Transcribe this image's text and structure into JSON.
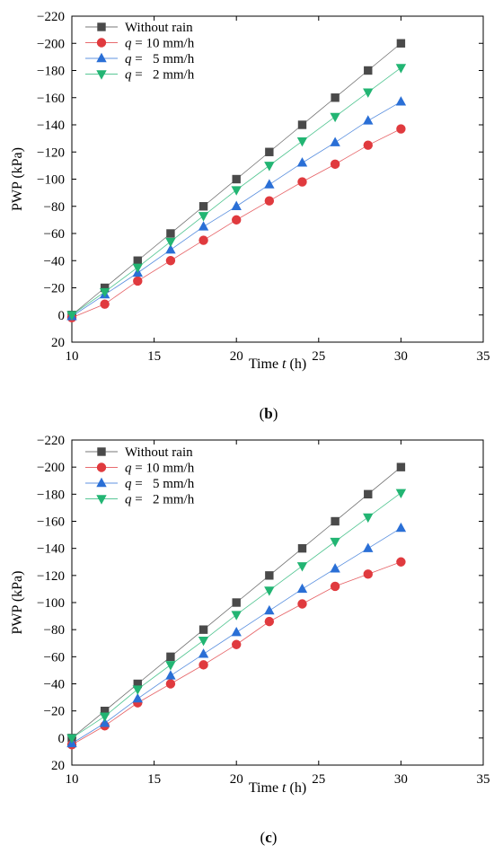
{
  "chart_data": [
    {
      "type": "line",
      "panel_label": "b",
      "xlabel_main": "Time ",
      "xlabel_var": "t",
      "xlabel_unit": " (h)",
      "ylabel": "PWP (kPa)",
      "xlim": [
        10,
        35
      ],
      "ylim": [
        20,
        -220
      ],
      "y_inverted": true,
      "x_ticks": [
        10,
        15,
        20,
        25,
        30,
        35
      ],
      "x_tick_labels": [
        "10",
        "15",
        "20",
        "25",
        "30",
        "35"
      ],
      "y_ticks": [
        -220,
        -200,
        -180,
        -160,
        -140,
        -120,
        -100,
        -80,
        -60,
        -40,
        -20,
        0,
        20
      ],
      "y_tick_labels": [
        "−220",
        "−200",
        "−180",
        "−160",
        "−140",
        "−120",
        "−100",
        "−80",
        "−60",
        "−40",
        "−20",
        "0",
        "20"
      ],
      "grid": false,
      "legend_position": "top-left",
      "x": [
        10,
        12,
        14,
        16,
        18,
        20,
        22,
        24,
        26,
        28,
        30
      ],
      "series": [
        {
          "name": "Without rain",
          "legend_var": "",
          "legend_rest": "Without rain",
          "marker": "square",
          "color": "#4a4a4a",
          "values": [
            0,
            -20,
            -40,
            -60,
            -80,
            -100,
            -120,
            -140,
            -160,
            -180,
            -200
          ]
        },
        {
          "name": "q = 10 mm/h",
          "legend_var": "q",
          "legend_rest": " = 10 mm/h",
          "marker": "circle",
          "color": "#e03a3e",
          "values": [
            2,
            -8,
            -25,
            -40,
            -55,
            -70,
            -84,
            -98,
            -111,
            -125,
            -137
          ]
        },
        {
          "name": "q =   5 mm/h",
          "legend_var": "q",
          "legend_rest": " =   5 mm/h",
          "marker": "triangle-up",
          "color": "#2a6fd6",
          "values": [
            1,
            -15,
            -31,
            -48,
            -65,
            -80,
            -96,
            -112,
            -127,
            -143,
            -157
          ]
        },
        {
          "name": "q =   2 mm/h",
          "legend_var": "q",
          "legend_rest": " =   2 mm/h",
          "marker": "triangle-down",
          "color": "#22b573",
          "values": [
            0,
            -17,
            -35,
            -54,
            -73,
            -92,
            -110,
            -128,
            -146,
            -164,
            -182
          ]
        }
      ]
    },
    {
      "type": "line",
      "panel_label": "c",
      "xlabel_main": "Time ",
      "xlabel_var": "t",
      "xlabel_unit": " (h)",
      "ylabel": "PWP (kPa)",
      "xlim": [
        10,
        35
      ],
      "ylim": [
        20,
        -220
      ],
      "y_inverted": true,
      "x_ticks": [
        10,
        15,
        20,
        25,
        30,
        35
      ],
      "x_tick_labels": [
        "10",
        "15",
        "20",
        "25",
        "30",
        "35"
      ],
      "y_ticks": [
        -220,
        -200,
        -180,
        -160,
        -140,
        -120,
        -100,
        -80,
        -60,
        -40,
        -20,
        0,
        20
      ],
      "y_tick_labels": [
        "−220",
        "−200",
        "−180",
        "−160",
        "−140",
        "−120",
        "−100",
        "−80",
        "−60",
        "−40",
        "−20",
        "0",
        "20"
      ],
      "grid": false,
      "legend_position": "top-left",
      "x": [
        10,
        12,
        14,
        16,
        18,
        20,
        22,
        24,
        26,
        28,
        30
      ],
      "series": [
        {
          "name": "Without rain",
          "legend_var": "",
          "legend_rest": "Without rain",
          "marker": "square",
          "color": "#4a4a4a",
          "values": [
            0,
            -20,
            -40,
            -60,
            -80,
            -100,
            -120,
            -140,
            -160,
            -180,
            -200
          ]
        },
        {
          "name": "q = 10 mm/h",
          "legend_var": "q",
          "legend_rest": " = 10 mm/h",
          "marker": "circle",
          "color": "#e03a3e",
          "values": [
            5,
            -9,
            -26,
            -40,
            -54,
            -69,
            -86,
            -99,
            -112,
            -121,
            -130
          ]
        },
        {
          "name": "q =   5 mm/h",
          "legend_var": "q",
          "legend_rest": " =   5 mm/h",
          "marker": "triangle-up",
          "color": "#2a6fd6",
          "values": [
            4,
            -11,
            -29,
            -46,
            -62,
            -78,
            -94,
            -110,
            -125,
            -140,
            -155
          ]
        },
        {
          "name": "q =   2 mm/h",
          "legend_var": "q",
          "legend_rest": " =   2 mm/h",
          "marker": "triangle-down",
          "color": "#22b573",
          "values": [
            0,
            -16,
            -36,
            -54,
            -72,
            -91,
            -109,
            -127,
            -145,
            -163,
            -181
          ]
        }
      ]
    }
  ]
}
